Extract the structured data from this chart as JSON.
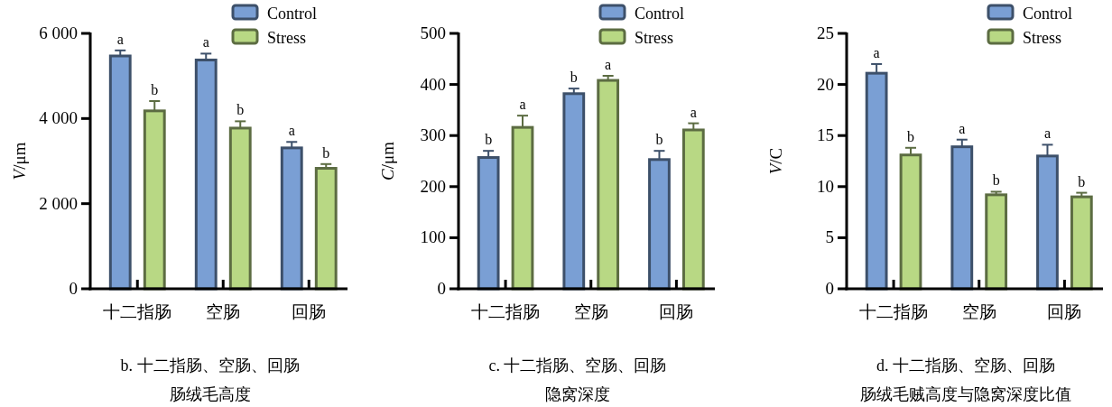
{
  "chart_data": [
    {
      "type": "bar",
      "ylabel": "V/μm",
      "categories": [
        "十二指肠",
        "空肠",
        "回肠"
      ],
      "ylim": [
        0,
        6000
      ],
      "yticks": [
        0,
        {
          "value": 2000,
          "label": "2 000"
        },
        {
          "value": 4000,
          "label": "4 000"
        },
        {
          "value": 6000,
          "label": "6 000"
        }
      ],
      "legend": "top right",
      "grid": false,
      "series": [
        {
          "name": "Control",
          "color": "#7a9fd4",
          "values": [
            5470,
            5375,
            3310
          ],
          "errors": [
            130,
            150,
            140
          ],
          "value_labels": [
            "a",
            "a",
            "a"
          ]
        },
        {
          "name": "Stress",
          "color": "#b8d884",
          "values": [
            4180,
            3775,
            2830
          ],
          "errors": [
            230,
            160,
            100
          ],
          "value_labels": [
            "b",
            "b",
            "b"
          ]
        }
      ],
      "annotations": [
        "b. 十二指肠、空肠、回肠",
        "肠绒毛高度"
      ]
    },
    {
      "type": "bar",
      "ylabel": "C/μm",
      "categories": [
        "十二指肠",
        "空肠",
        "回肠"
      ],
      "ylim": [
        0,
        500
      ],
      "yticks": [
        0,
        100,
        200,
        300,
        400,
        500
      ],
      "legend": "top right",
      "grid": false,
      "series": [
        {
          "name": "Control",
          "color": "#7a9fd4",
          "values": [
            257,
            382,
            253
          ],
          "errors": [
            13,
            10,
            17
          ],
          "value_labels": [
            "b",
            "b",
            "b"
          ]
        },
        {
          "name": "Stress",
          "color": "#b8d884",
          "values": [
            316,
            408,
            311
          ],
          "errors": [
            23,
            9,
            13
          ],
          "value_labels": [
            "a",
            "a",
            "a"
          ]
        }
      ],
      "annotations": [
        "c. 十二指肠、空肠、回肠",
        "隐窝深度"
      ]
    },
    {
      "type": "bar",
      "ylabel": "V/C",
      "categories": [
        "十二指肠",
        "空肠",
        "回肠"
      ],
      "ylim": [
        0,
        25
      ],
      "yticks": [
        0,
        5,
        10,
        15,
        20,
        25
      ],
      "legend": "top right",
      "grid": false,
      "series": [
        {
          "name": "Control",
          "color": "#7a9fd4",
          "values": [
            21.1,
            13.9,
            13.0
          ],
          "errors": [
            0.9,
            0.7,
            1.1
          ],
          "value_labels": [
            "a",
            "a",
            "a"
          ]
        },
        {
          "name": "Stress",
          "color": "#b8d884",
          "values": [
            13.1,
            9.2,
            9.0
          ],
          "errors": [
            0.7,
            0.3,
            0.4
          ],
          "value_labels": [
            "b",
            "b",
            "b"
          ]
        }
      ],
      "annotations": [
        "d. 十二指肠、空肠、回肠",
        "肠绒毛贼高度与隐窝深度比值"
      ]
    }
  ]
}
